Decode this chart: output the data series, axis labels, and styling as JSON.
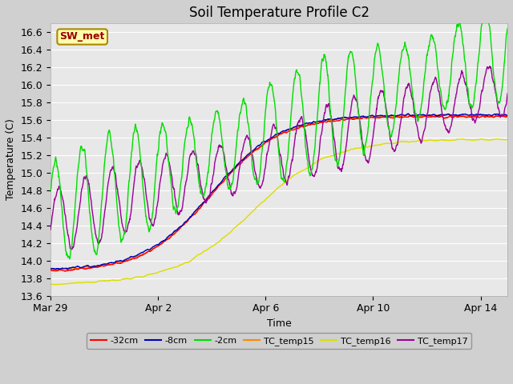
{
  "title": "Soil Temperature Profile C2",
  "xlabel": "Time",
  "ylabel": "Temperature (C)",
  "ylim": [
    13.6,
    16.7
  ],
  "xlim": [
    0,
    17
  ],
  "xtick_positions": [
    0,
    4,
    8,
    12,
    16
  ],
  "xtick_labels": [
    "Mar 29",
    "Apr 2",
    "Apr 6",
    "Apr 10",
    "Apr 14"
  ],
  "ytick_values": [
    13.6,
    13.8,
    14.0,
    14.2,
    14.4,
    14.6,
    14.8,
    15.0,
    15.2,
    15.4,
    15.6,
    15.8,
    16.0,
    16.2,
    16.4,
    16.6
  ],
  "legend_labels": [
    "-32cm",
    "-8cm",
    "-2cm",
    "TC_temp15",
    "TC_temp16",
    "TC_temp17"
  ],
  "line_colors": [
    "#ff0000",
    "#0000bb",
    "#00dd00",
    "#ff8800",
    "#dddd00",
    "#990099"
  ],
  "annotation_text": "SW_met",
  "background_color": "#d0d0d0",
  "plot_bg_color": "#e8e8e8",
  "title_fontsize": 12,
  "label_fontsize": 9,
  "tick_fontsize": 9
}
